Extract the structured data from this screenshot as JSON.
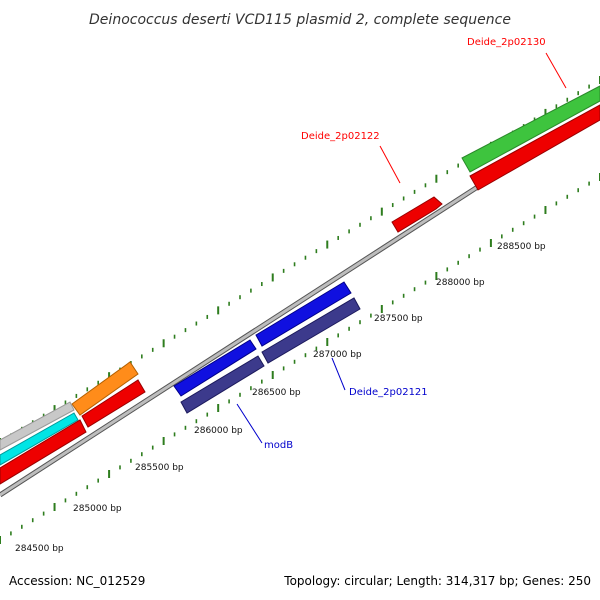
{
  "title": "Deinococcus deserti VCD115 plasmid 2, complete sequence",
  "footer": {
    "accession": "Accession: NC_012529",
    "summary": "Topology: circular; Length: 314,317 bp; Genes: 250"
  },
  "gene_labels": [
    {
      "id": "Deide_2p02130",
      "text": "Deide_2p02130",
      "color": "#ff0000"
    },
    {
      "id": "Deide_2p02122",
      "text": "Deide_2p02122",
      "color": "#ff0000"
    },
    {
      "id": "Deide_2p02121",
      "text": "Deide_2p02121",
      "color": "#0000cc"
    },
    {
      "id": "modB",
      "text": "modB",
      "color": "#0000cc"
    }
  ],
  "bp_ticks": [
    "284500 bp",
    "285000 bp",
    "285500 bp",
    "286000 bp",
    "286500 bp",
    "287000 bp",
    "287500 bp",
    "288000 bp",
    "288500 bp"
  ],
  "colors": {
    "backbone": "#888888",
    "tick": "#2e7d1e",
    "green_gene": "#3ec43e",
    "red_gene": "#ee0000",
    "blue_gene": "#1010e0",
    "navy_gene": "#3c3a8c",
    "orange_gene": "#ff8c1a",
    "cyan_gene": "#00e5e5",
    "grey_gene": "#c8c8c8"
  }
}
